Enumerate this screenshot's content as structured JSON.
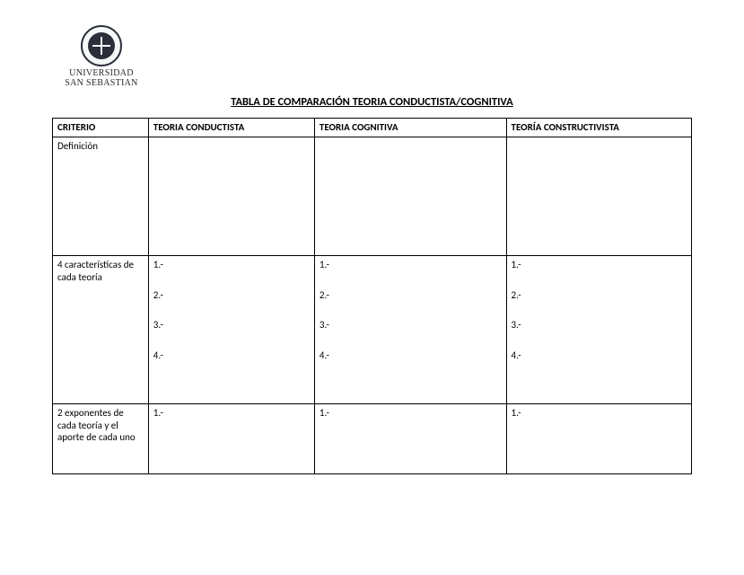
{
  "logo": {
    "line1": "UNIVERSIDAD",
    "line2": "SAN SEBASTIAN"
  },
  "title": "TABLA DE COMPARACIÓN TEORIA CONDUCTISTA/COGNITIVA",
  "table": {
    "columns": [
      "CRITERIO",
      "TEORIA CONDUCTISTA",
      "TEORIA COGNITIVA",
      "TEORÍA CONSTRUCTIVISTA"
    ],
    "rows": [
      {
        "criterio": "Definición",
        "cells": [
          "",
          "",
          ""
        ]
      },
      {
        "criterio": "4 características de cada teoría",
        "cells": [
          [
            "1.-",
            "2.-",
            "3.-",
            "4.-"
          ],
          [
            "1.-",
            "2.-",
            "3.-",
            "4.-"
          ],
          [
            "1.-",
            "2.-",
            "3.-",
            "4.-"
          ]
        ]
      },
      {
        "criterio": "2 exponentes de cada teoría y el aporte de cada uno",
        "cells": [
          "1.-",
          "1.-",
          "1.-"
        ]
      }
    ],
    "col_widths_pct": [
      15,
      26,
      30,
      29
    ],
    "border_color": "#000000",
    "font_size_pt": 11,
    "header_bold": true
  },
  "style": {
    "page_bg": "#ffffff",
    "text_color": "#000000",
    "title_fontsize_pt": 12.5,
    "logo_colors": {
      "ring": "#2a2f3a",
      "inner": "#2a2f3a",
      "bg": "#f6f7f8"
    }
  }
}
